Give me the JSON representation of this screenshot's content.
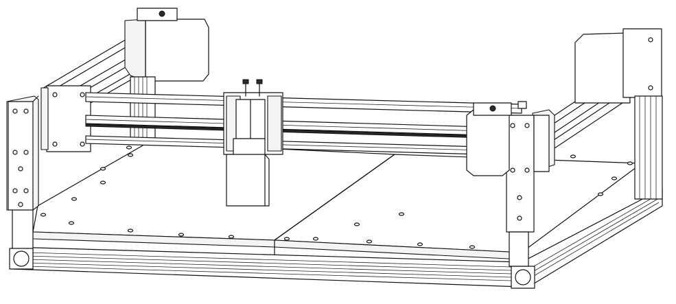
{
  "figure": {
    "subject": "cnc-router-frame",
    "style": "black line drawing on white background",
    "colors": {
      "line": "#111111",
      "background": "#ffffff",
      "shade": "#e6e6e6"
    }
  }
}
